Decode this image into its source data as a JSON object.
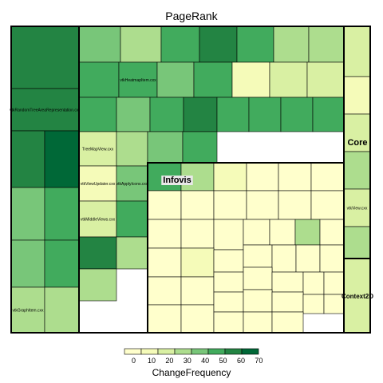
{
  "chart_data": {
    "type": "treemap",
    "title": "PageRank",
    "size_measure": "PageRank",
    "color_measure": "ChangeFrequency",
    "legend": {
      "title": "ChangeFrequency",
      "ticks": [
        0,
        10,
        20,
        30,
        40,
        50,
        60,
        70
      ],
      "range": [
        0,
        75
      ],
      "placement": "bottom",
      "colors": [
        "#ffffcc",
        "#f5fbb9",
        "#d9f0a3",
        "#addd8e",
        "#78c679",
        "#41ab5d",
        "#238443",
        "#006837"
      ]
    },
    "groups": [
      {
        "label": "",
        "cells": [
          {
            "label": "",
            "value": 58
          },
          {
            "label": "vtkRandomTreeAreaRepresentation.cxx",
            "value": 58
          },
          {
            "label": "",
            "value": 60
          },
          {
            "label": "",
            "value": 72
          },
          {
            "label": "",
            "value": 40
          },
          {
            "label": "",
            "value": 55
          },
          {
            "label": "",
            "value": 42
          },
          {
            "label": "",
            "value": 55
          },
          {
            "label": "vtkGraphItem.cxx",
            "value": 30
          },
          {
            "label": "",
            "value": 30
          }
        ]
      },
      {
        "label": "",
        "cells": [
          {
            "label": "",
            "value": 40
          },
          {
            "label": "",
            "value": 30
          },
          {
            "label": "",
            "value": 55
          },
          {
            "label": "",
            "value": 65
          },
          {
            "label": "",
            "value": 48
          },
          {
            "label": "",
            "value": 35
          },
          {
            "label": "",
            "value": 30
          },
          {
            "label": "",
            "value": 55
          },
          {
            "label": "vtkHeatmapItem.cxx",
            "value": 55
          },
          {
            "label": "",
            "value": 45
          },
          {
            "label": "",
            "value": 55
          },
          {
            "label": "",
            "value": 15
          },
          {
            "label": "",
            "value": 28
          },
          {
            "label": "",
            "value": 25
          },
          {
            "label": "",
            "value": 55
          },
          {
            "label": "",
            "value": 43
          },
          {
            "label": "",
            "value": 50
          },
          {
            "label": "",
            "value": 57
          },
          {
            "label": "",
            "value": 50
          },
          {
            "label": "",
            "value": 55
          },
          {
            "label": "",
            "value": 47
          },
          {
            "label": "",
            "value": 50
          },
          {
            "label": "TreeMapView.cxx",
            "value": 25
          },
          {
            "label": "",
            "value": 30
          },
          {
            "label": "",
            "value": 42
          },
          {
            "label": "",
            "value": 50
          },
          {
            "label": "vtkViewUpdater.cxx",
            "value": 15
          },
          {
            "label": "vtkApplyIcons.cxx",
            "value": 40
          },
          {
            "label": "vtkMiddleViews.cxx",
            "value": 28
          },
          {
            "label": "",
            "value": 47
          },
          {
            "label": "",
            "value": 62
          },
          {
            "label": "",
            "value": 30
          },
          {
            "label": "",
            "value": 33
          }
        ]
      },
      {
        "label": "Infovis",
        "cells": [
          {
            "label": "",
            "value": 48
          },
          {
            "label": "",
            "value": 35
          },
          {
            "label": "",
            "value": 15
          },
          {
            "label": "",
            "value": 2
          },
          {
            "label": "",
            "value": 2
          },
          {
            "label": "",
            "value": 3
          },
          {
            "label": "",
            "value": 2
          },
          {
            "label": "",
            "value": 2
          },
          {
            "label": "",
            "value": 3
          },
          {
            "label": "",
            "value": 2
          },
          {
            "label": "",
            "value": 2
          },
          {
            "label": "",
            "value": 2
          },
          {
            "label": "",
            "value": 3
          },
          {
            "label": "",
            "value": 2
          },
          {
            "label": "",
            "value": 4
          },
          {
            "label": "",
            "value": 3
          },
          {
            "label": "",
            "value": 2
          },
          {
            "label": "",
            "value": 30
          },
          {
            "label": "",
            "value": 3
          },
          {
            "label": "",
            "value": 3
          },
          {
            "label": "",
            "value": 15
          },
          {
            "label": "",
            "value": 2
          },
          {
            "label": "",
            "value": 3
          },
          {
            "label": "",
            "value": 2
          },
          {
            "label": "",
            "value": 2
          },
          {
            "label": "",
            "value": 3
          },
          {
            "label": "",
            "value": 6
          },
          {
            "label": "",
            "value": 2
          },
          {
            "label": "",
            "value": 2
          },
          {
            "label": "",
            "value": 2
          },
          {
            "label": "",
            "value": 2
          },
          {
            "label": "",
            "value": 3
          },
          {
            "label": "",
            "value": 5
          },
          {
            "label": "",
            "value": 2
          },
          {
            "label": "",
            "value": 3
          },
          {
            "label": "",
            "value": 3
          },
          {
            "label": "",
            "value": 2
          },
          {
            "label": "",
            "value": 3
          },
          {
            "label": "",
            "value": 2
          },
          {
            "label": "",
            "value": 3
          },
          {
            "label": "",
            "value": 3
          },
          {
            "label": "",
            "value": 2
          },
          {
            "label": "",
            "value": 2
          }
        ]
      },
      {
        "label": "Core",
        "cells": [
          {
            "label": "",
            "value": 20
          },
          {
            "label": "",
            "value": 18
          },
          {
            "label": "",
            "value": 20
          },
          {
            "label": "",
            "value": 30
          },
          {
            "label": "vtkView.cxx",
            "value": 25
          },
          {
            "label": "",
            "value": 30
          }
        ]
      },
      {
        "label": "Context2D",
        "cells": [
          {
            "label": "",
            "value": 28
          }
        ]
      }
    ]
  }
}
